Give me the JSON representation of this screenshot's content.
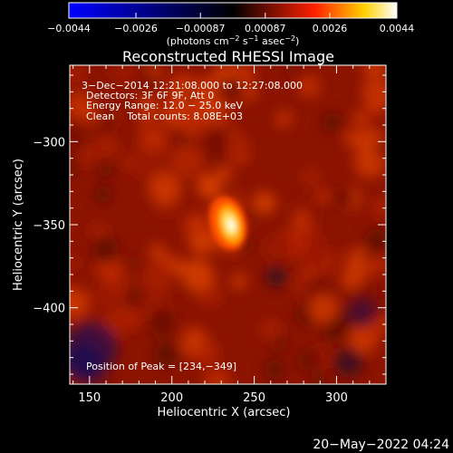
{
  "chart_data": {
    "type": "heatmap",
    "title": "Reconstructed RHESSI Image",
    "xlabel": "Heliocentric X (arcsec)",
    "ylabel": "Heliocentric Y (arcsec)",
    "xlim": [
      138,
      330
    ],
    "ylim": [
      -446,
      -254
    ],
    "x_ticks": [
      150,
      200,
      250,
      300
    ],
    "x_tick_labels": [
      "150",
      "200",
      "250",
      "300"
    ],
    "y_ticks": [
      -300,
      -350,
      -400
    ],
    "y_tick_labels": [
      "−300",
      "−350",
      "−400"
    ],
    "colorbar": {
      "min": -0.0044,
      "max": 0.0044,
      "ticks": [
        -0.0044,
        -0.0026,
        -0.00087,
        0.00087,
        0.0026,
        0.0044
      ],
      "tick_labels": [
        "−0.0044",
        "−0.0026",
        "−0.00087",
        "0.00087",
        "0.0026",
        "0.0044"
      ],
      "unit_label_parts": [
        "(photons cm",
        "−2",
        " s",
        "−1",
        " asec",
        "−2",
        ")"
      ],
      "colors": [
        "#0000ff",
        "#000000",
        "#ff2000",
        "#ffffff"
      ]
    },
    "annotations": [
      "3−Dec−2014 12:21:08.000 to 12:27:08.000",
      "Detectors: 3F 6F 9F, Att 0",
      "Energy Range: 12.0 − 25.0 keV",
      "Clean    Total counts: 8.08E+03"
    ],
    "peak_label": "Position of Peak = [234,−349]",
    "peak": [
      234,
      -349
    ],
    "timestamp": "20−May−2022 04:24"
  }
}
